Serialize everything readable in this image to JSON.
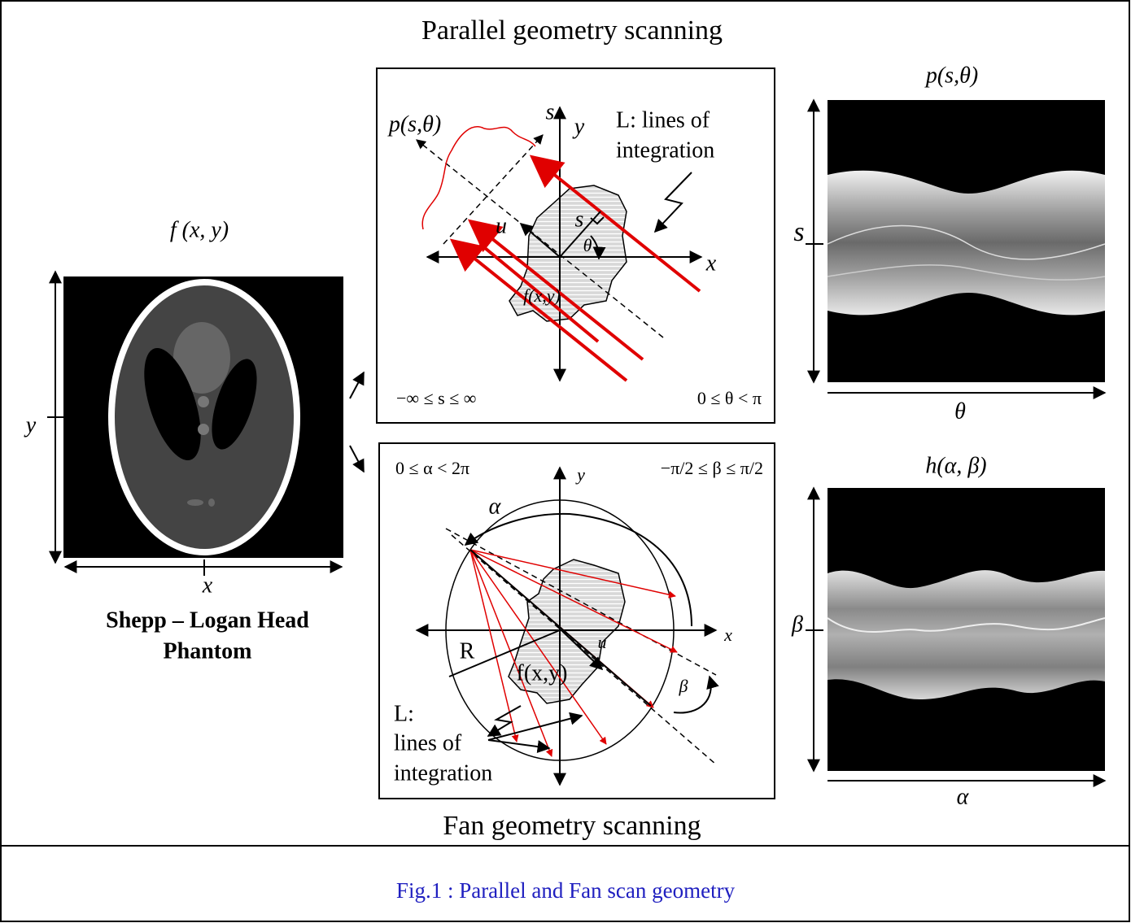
{
  "title": "Parallel geometry scanning",
  "fan_title": "Fan geometry scanning",
  "caption": "Fig.1 :  Parallel and Fan scan geometry",
  "phantom": {
    "label": "f (x, y)",
    "x_axis": "x",
    "y_axis": "y",
    "name": [
      "Shepp – Logan Head",
      "Phantom"
    ]
  },
  "parallel": {
    "projection": "p(s,θ)",
    "s_axis": "s",
    "y_axis": "y",
    "x_axis": "x",
    "u": "u",
    "s": "s",
    "theta": "θ",
    "object": "f(x,y)",
    "lines": [
      "L: lines of",
      "integration"
    ],
    "s_range": "−∞ ≤ s ≤ ∞",
    "theta_range": "0 ≤ θ < π"
  },
  "fan": {
    "alpha_range": "0 ≤ α < 2π",
    "beta_range": "−π/2 ≤ β ≤ π/2",
    "y_axis": "y",
    "x_axis": "x",
    "alpha": "α",
    "radius": "R",
    "u": "u",
    "object": "f(x,y)",
    "beta": "β",
    "lines": [
      "L:",
      "lines of",
      "integration"
    ]
  },
  "parallel_sinogram": {
    "title": "p(s,θ)",
    "y_axis": "s",
    "x_axis": "θ"
  },
  "fan_sinogram": {
    "title": "h(α, β)",
    "y_axis": "β",
    "x_axis": "α"
  }
}
